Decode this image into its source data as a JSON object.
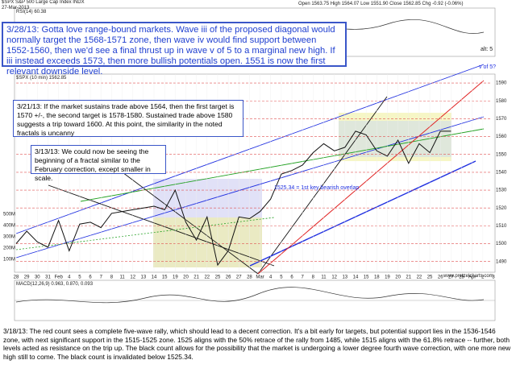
{
  "header": {
    "symbol": "$SPX S&P 500 Large Cap Index INDX",
    "date": "27-Mar-2013",
    "quote": "Open 1563.75 High 1564.07 Low 1551.90 Close 1562.85 Chg -0.92 (-0.06%)",
    "rsi": "RSI(14) 60.38",
    "macd": "MACD(12,26,9) 0.963, 0.870, 0.093",
    "site": "www.pretzelcharts.com"
  },
  "chart_data": {
    "type": "line",
    "title": "$SPX (10 min) 1562.85",
    "x": [
      "28",
      "29",
      "30",
      "31",
      "Feb",
      "4",
      "5",
      "6",
      "7",
      "8",
      "11",
      "12",
      "13",
      "14",
      "15",
      "19",
      "20",
      "21",
      "22",
      "25",
      "26",
      "27",
      "28",
      "Mar",
      "4",
      "5",
      "6",
      "7",
      "8",
      "11",
      "12",
      "13",
      "14",
      "15",
      "18",
      "19",
      "20",
      "21",
      "22",
      "25",
      "26",
      "27",
      "28",
      "Apr",
      "2",
      "3"
    ],
    "series": [
      {
        "name": "$SPX",
        "color": "#111111",
        "values": [
          1500,
          1507,
          1501,
          1498,
          1513,
          1496,
          1511,
          1512,
          1509,
          1517,
          1518,
          1519,
          1520,
          1521,
          1519,
          1530,
          1512,
          1502,
          1515,
          1488,
          1496,
          1515,
          1514,
          1518,
          1525,
          1539,
          1541,
          1544,
          1551,
          1556,
          1552,
          1554,
          1563,
          1561,
          1552,
          1549,
          1558,
          1545,
          1556,
          1551,
          1563,
          1563,
          null,
          null,
          null,
          null
        ]
      }
    ],
    "ylim": [
      1484,
      1595
    ],
    "yticks": [
      1490,
      1500,
      1510,
      1520,
      1530,
      1540,
      1550,
      1560,
      1570,
      1580,
      1590
    ],
    "grid": true,
    "grid_color": "#e05050",
    "volume_ticks": [
      "500M",
      "400M",
      "300M",
      "200M",
      "100M"
    ],
    "annotations": [
      "1525.34 = 1st key bearish overlap",
      "alt: 5",
      "v of 5?"
    ],
    "notes": [
      "3/28/13: Gotta love range-bound markets.  Wave iii of the proposed diagonal would normally target the 1568-1571 zone, then wave iv would find support between 1552-1560, then we'd see a final thrust up in wave v of 5 to a marginal new high.  If iii instead exceeds 1573, then more bullish potentials open.  1551 is now the first relevant downside level.",
      "3/21/13:  If the market sustains trade above 1564, then the first target is 1570 +/-, the second target is 1578-1580.  Sustained trade above 1580 suggests a trip toward 1600.  At this point, the similarity in the noted fractals is uncanny",
      "3/13/13: We could now be seeing the beginning of a fractal similar to the February correction, except smaller in scale.",
      "3/18/13:  The red count sees a complete five-wave rally, which should lead to a decent correction.  It's a bit early for targets, but potential support lies in the 1536-1546 zone, with next significant support in the 1515-1525 zone.  1525 aligns with the 50% retrace of the rally from 1485, while 1515 aligns with the 61.8% retrace -- further, both levels acted as resistance on the trip up.  The black count allows for the possibility that the market is undergoing a lower degree fourth wave correction, with one more new high still to come.  The black count is invalidated below 1525.34."
    ]
  }
}
